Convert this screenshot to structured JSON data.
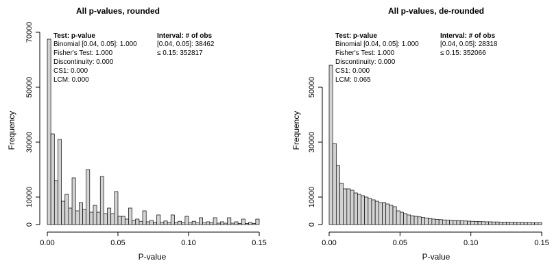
{
  "chart_data": [
    {
      "type": "bar",
      "title": "All p-values, rounded",
      "xlabel": "P-value",
      "ylabel": "Frequency",
      "xlim": [
        0,
        0.15
      ],
      "ylim": [
        0,
        70000
      ],
      "bin_width": 0.0025,
      "x_ticks": [
        "0.00",
        "0.05",
        "0.10",
        "0.15"
      ],
      "y_ticks": [
        "0",
        "10000",
        "30000",
        "50000",
        "70000"
      ],
      "values": [
        67500,
        33000,
        16000,
        31000,
        8500,
        11000,
        6000,
        17000,
        5000,
        8000,
        5500,
        20000,
        4500,
        7000,
        4500,
        17500,
        4000,
        6000,
        4000,
        12000,
        3000,
        3000,
        2000,
        6000,
        1500,
        2000,
        1200,
        5000,
        1000,
        1500,
        800,
        3500,
        800,
        1300,
        800,
        3500,
        700,
        1200,
        700,
        3000,
        600,
        1200,
        600,
        2500,
        600,
        1000,
        600,
        2500,
        500,
        1000,
        500,
        2500,
        500,
        1000,
        400,
        2000,
        400,
        800,
        400,
        2000
      ],
      "annotations": {
        "left_header": "Test: p-value",
        "left_lines": [
          "Binomial [0.04, 0.05]: 1.000",
          "Fisher's Test: 1.000",
          "Discontinuity: 0.000",
          "CS1: 0.000",
          "LCM: 0.000"
        ],
        "right_header": "Interval: # of obs",
        "right_lines": [
          "[0.04, 0.05]: 38462",
          "≤ 0.15: 352817"
        ]
      }
    },
    {
      "type": "bar",
      "title": "All p-values, de-rounded",
      "xlabel": "P-value",
      "ylabel": "Frequency",
      "xlim": [
        0,
        0.15
      ],
      "ylim": [
        0,
        70000
      ],
      "bin_width": 0.0025,
      "x_ticks": [
        "0.00",
        "0.05",
        "0.10",
        "0.15"
      ],
      "y_ticks": [
        "0",
        "10000",
        "30000",
        "50000"
      ],
      "values": [
        58000,
        29500,
        21500,
        15000,
        13000,
        13000,
        12500,
        11500,
        11000,
        10500,
        10000,
        9500,
        9000,
        8500,
        8000,
        8000,
        7500,
        7000,
        6500,
        5000,
        4500,
        4000,
        3500,
        3200,
        3000,
        2800,
        2600,
        2400,
        2200,
        2000,
        1900,
        1800,
        1700,
        1600,
        1500,
        1450,
        1400,
        1350,
        1300,
        1250,
        1200,
        1150,
        1100,
        1050,
        1000,
        1000,
        950,
        950,
        900,
        900,
        850,
        850,
        800,
        800,
        800,
        750,
        750,
        700,
        700,
        700
      ],
      "annotations": {
        "left_header": "Test: p-value",
        "left_lines": [
          "Binomial [0.04, 0.05]: 1.000",
          "Fisher's Test: 1.000",
          "Discontinuity: 0.000",
          "CS1: 0.000",
          "LCM: 0.065"
        ],
        "right_header": "Interval: # of obs",
        "right_lines": [
          "[0.04, 0.05]: 28318",
          "≤ 0.15: 352066"
        ]
      }
    }
  ]
}
